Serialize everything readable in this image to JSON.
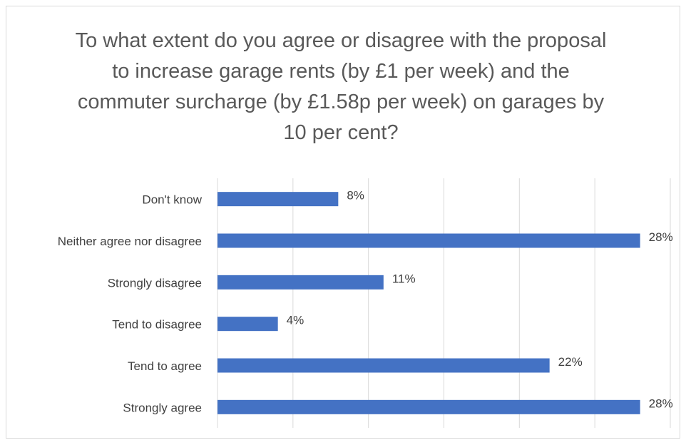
{
  "chart_data": {
    "type": "barh",
    "title": "To what extent do you agree or disagree with the proposal to increase garage rents (by £1 per week) and the commuter surcharge (by £1.58p per week) on garages by 10 per cent?",
    "categories": [
      "Don't know",
      "Neither agree nor disagree",
      "Strongly disagree",
      "Tend to disagree",
      "Tend to agree",
      "Strongly agree"
    ],
    "values": [
      8,
      28,
      11,
      4,
      22,
      28
    ],
    "value_labels": [
      "8%",
      "28%",
      "11%",
      "4%",
      "22%",
      "28%"
    ],
    "color": "#4472c4",
    "xlim": [
      0,
      30
    ],
    "xticks": [
      0,
      5,
      10,
      15,
      20,
      25,
      30
    ],
    "grid": true
  }
}
